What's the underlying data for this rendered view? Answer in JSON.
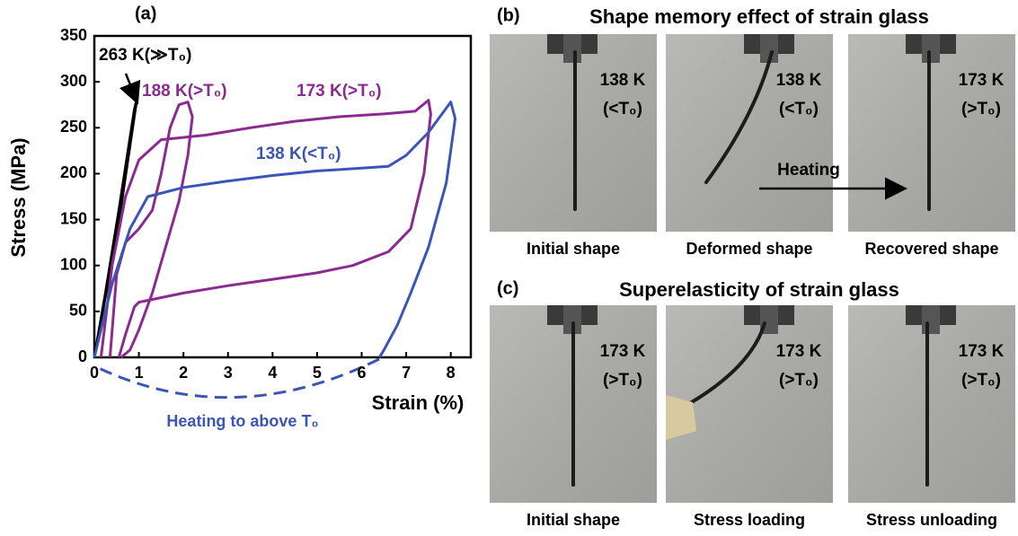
{
  "chart_data": {
    "type": "line",
    "panel_label": "(a)",
    "x_label": "Strain (%)",
    "y_label": "Stress (MPa)",
    "annotation": "Heating to above T₀",
    "xlim": [
      0,
      8.45
    ],
    "ylim": [
      0,
      350
    ],
    "xticks": [
      0,
      1,
      2,
      3,
      4,
      5,
      6,
      7,
      8
    ],
    "yticks": [
      0,
      50,
      100,
      150,
      200,
      250,
      300,
      350
    ],
    "series": [
      {
        "name": "263 K(≫T₀)",
        "color": "#000000",
        "x": [
          0,
          0.3,
          0.6,
          0.95,
          0.9,
          0.55,
          0.25,
          0
        ],
        "values": [
          0,
          80,
          165,
          280,
          270,
          160,
          70,
          0
        ]
      },
      {
        "name": "188 K(>T₀)",
        "color": "#8b2a8f",
        "x": [
          0.35,
          0.5,
          0.7,
          1.0,
          1.3,
          1.5,
          1.7,
          1.9,
          2.1,
          2.2,
          2.1,
          1.9,
          1.6,
          1.3,
          1.0,
          0.8,
          0.6
        ],
        "values": [
          0,
          90,
          125,
          140,
          160,
          200,
          250,
          275,
          278,
          262,
          220,
          170,
          120,
          70,
          30,
          8,
          0
        ]
      },
      {
        "name": "173 K(>T₀)",
        "color": "#8b2a8f",
        "x": [
          0.15,
          0.4,
          0.7,
          1.0,
          1.5,
          2.5,
          3.5,
          4.5,
          5.5,
          6.5,
          7.2,
          7.5,
          7.55,
          7.4,
          7.1,
          6.6,
          5.8,
          5.0,
          4.0,
          3.0,
          2.0,
          1.0,
          0.9,
          0.7,
          0.55
        ],
        "values": [
          0,
          100,
          175,
          215,
          237,
          242,
          250,
          257,
          262,
          265,
          268,
          280,
          265,
          200,
          140,
          115,
          100,
          92,
          85,
          78,
          70,
          60,
          55,
          25,
          0
        ]
      },
      {
        "name": "138 K(<T₀)",
        "color": "#3a55b5",
        "x": [
          0,
          0.4,
          0.8,
          1.2,
          2,
          3,
          4,
          5,
          6,
          6.6,
          7.0,
          7.5,
          8.0,
          8.1,
          7.9,
          7.5,
          7.1,
          6.8,
          6.5,
          6.4
        ],
        "values": [
          0,
          80,
          140,
          175,
          185,
          192,
          198,
          203,
          206,
          208,
          220,
          245,
          278,
          260,
          190,
          120,
          70,
          35,
          8,
          0
        ]
      }
    ]
  },
  "panel_b": {
    "label": "(b)",
    "title": "Shape memory effect of strain glass",
    "heating": "Heating",
    "photos": [
      {
        "temp": "138 K",
        "cond": "(<T₀)",
        "caption": "Initial shape"
      },
      {
        "temp": "138 K",
        "cond": "(<T₀)",
        "caption": "Deformed shape"
      },
      {
        "temp": "173 K",
        "cond": "(>T₀)",
        "caption": "Recovered shape"
      }
    ]
  },
  "panel_c": {
    "label": "(c)",
    "title": "Superelasticity of strain glass",
    "photos": [
      {
        "temp": "173 K",
        "cond": "(>T₀)",
        "caption": "Initial shape"
      },
      {
        "temp": "173 K",
        "cond": "(>T₀)",
        "caption": "Stress loading"
      },
      {
        "temp": "173 K",
        "cond": "(>T₀)",
        "caption": "Stress unloading"
      }
    ]
  }
}
